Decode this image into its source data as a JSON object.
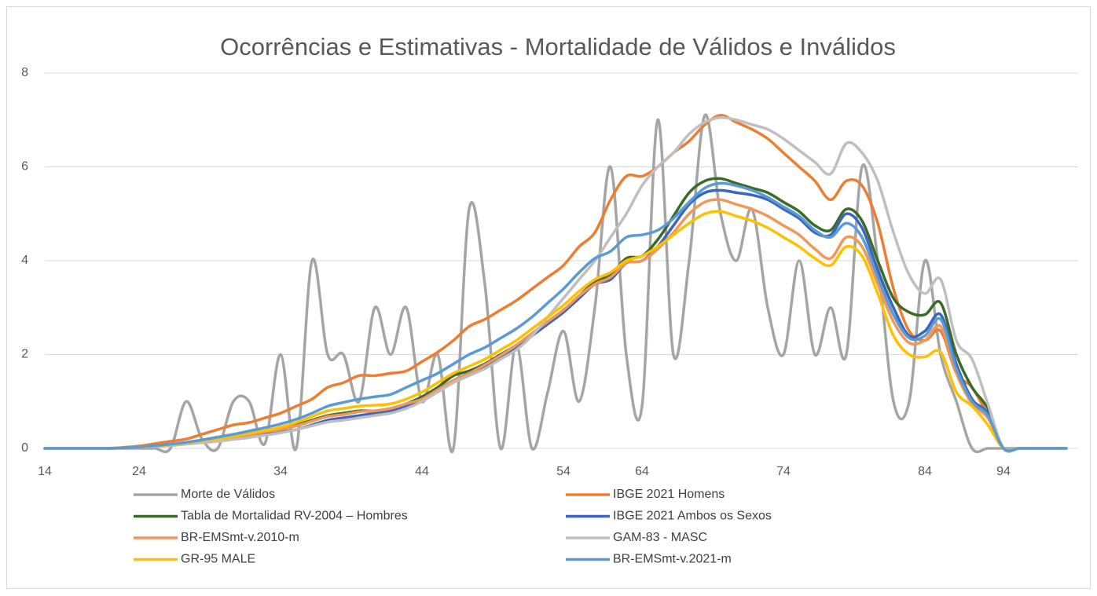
{
  "chart_data": {
    "type": "line",
    "title": "Ocorrências e Estimativas - Mortalidade de Válidos e Inválidos",
    "categories": [
      14,
      null,
      null,
      null,
      null,
      null,
      24,
      null,
      null,
      null,
      null,
      null,
      null,
      null,
      null,
      34,
      null,
      null,
      null,
      null,
      null,
      null,
      null,
      null,
      44,
      null,
      null,
      null,
      null,
      null,
      null,
      null,
      null,
      54,
      null,
      null,
      null,
      null,
      64,
      null,
      null,
      null,
      null,
      null,
      null,
      null,
      null,
      74,
      null,
      null,
      null,
      null,
      null,
      null,
      null,
      null,
      84,
      null,
      null,
      null,
      null,
      94,
      null,
      null,
      null,
      null
    ],
    "ylim": [
      0,
      8
    ],
    "yticks": [
      0,
      2,
      4,
      6,
      8
    ],
    "grid": true,
    "series": [
      {
        "name": "Morte de Válidos",
        "color": "#a5a5a5",
        "values": [
          0,
          0,
          0,
          0,
          0,
          0,
          0,
          0,
          0,
          1.0,
          0.2,
          0,
          1.0,
          1.0,
          0.1,
          2.0,
          0,
          4.0,
          2.0,
          2.0,
          1.0,
          3.0,
          2.0,
          3.0,
          1.0,
          2.0,
          0,
          5.1,
          3.5,
          0,
          2.2,
          0,
          1.2,
          2.5,
          1.0,
          3.0,
          6.0,
          2.0,
          0.9,
          7.0,
          2.0,
          4.0,
          7.1,
          5.0,
          4.0,
          5.1,
          3.0,
          2.0,
          4.0,
          2.0,
          3.0,
          2.0,
          6.0,
          4.0,
          1.0,
          1.0,
          4.0,
          2.0,
          1.0,
          0,
          0,
          0,
          0,
          0,
          0,
          0
        ]
      },
      {
        "name": "IBGE 2021  Homens",
        "color": "#ed7d31",
        "values": [
          0,
          0,
          0,
          0,
          0,
          0.02,
          0.05,
          0.1,
          0.15,
          0.2,
          0.3,
          0.4,
          0.5,
          0.55,
          0.65,
          0.75,
          0.9,
          1.05,
          1.3,
          1.4,
          1.55,
          1.55,
          1.6,
          1.65,
          1.85,
          2.05,
          2.3,
          2.6,
          2.75,
          2.95,
          3.15,
          3.4,
          3.65,
          3.9,
          4.3,
          4.6,
          5.3,
          5.8,
          5.8,
          6.0,
          6.3,
          6.55,
          6.9,
          7.1,
          6.95,
          6.8,
          6.6,
          6.3,
          6.0,
          5.7,
          5.3,
          5.7,
          5.6,
          4.8,
          3.4,
          2.5,
          2.3,
          2.5,
          1.6,
          1.3,
          0.7,
          0,
          0,
          0,
          0,
          0
        ]
      },
      {
        "name": "Tabla de Mortalidad RV-2004 – Hombres",
        "color": "#3b6b26",
        "values": [
          0,
          0,
          0,
          0,
          0,
          0.01,
          0.03,
          0.05,
          0.08,
          0.12,
          0.16,
          0.2,
          0.25,
          0.3,
          0.35,
          0.42,
          0.5,
          0.6,
          0.7,
          0.75,
          0.8,
          0.8,
          0.85,
          0.95,
          1.1,
          1.3,
          1.55,
          1.65,
          1.8,
          2.0,
          2.2,
          2.45,
          2.7,
          2.95,
          3.25,
          3.55,
          3.7,
          4.05,
          4.1,
          4.45,
          4.95,
          5.45,
          5.7,
          5.75,
          5.65,
          5.55,
          5.45,
          5.25,
          5.05,
          4.75,
          4.65,
          5.1,
          4.85,
          4.0,
          3.2,
          2.9,
          2.85,
          3.1,
          2.0,
          1.3,
          0.85,
          0,
          0,
          0,
          0,
          0
        ]
      },
      {
        "name": "IBGE 2021  Ambos os Sexos",
        "color": "#3a66bd",
        "values": [
          0,
          0,
          0,
          0,
          0,
          0.01,
          0.02,
          0.04,
          0.06,
          0.1,
          0.13,
          0.16,
          0.2,
          0.25,
          0.3,
          0.35,
          0.4,
          0.5,
          0.6,
          0.65,
          0.7,
          0.75,
          0.8,
          0.9,
          1.05,
          1.25,
          1.45,
          1.6,
          1.75,
          1.95,
          2.15,
          2.4,
          2.65,
          2.9,
          3.2,
          3.5,
          3.6,
          3.95,
          4.0,
          4.3,
          4.75,
          5.2,
          5.45,
          5.5,
          5.45,
          5.4,
          5.3,
          5.1,
          4.9,
          4.6,
          4.55,
          5.0,
          4.7,
          3.8,
          3.0,
          2.4,
          2.5,
          2.85,
          1.8,
          1.05,
          0.75,
          0,
          0,
          0,
          0,
          0
        ]
      },
      {
        "name": "BR-EMSmt-v.2010-m",
        "color": "#f1975a",
        "values": [
          0,
          0,
          0,
          0,
          0,
          0.01,
          0.03,
          0.05,
          0.07,
          0.11,
          0.15,
          0.19,
          0.24,
          0.29,
          0.35,
          0.4,
          0.48,
          0.58,
          0.68,
          0.72,
          0.78,
          0.8,
          0.85,
          0.95,
          1.05,
          1.25,
          1.45,
          1.6,
          1.78,
          1.98,
          2.2,
          2.45,
          2.7,
          2.95,
          3.25,
          3.5,
          3.65,
          3.95,
          4.0,
          4.25,
          4.6,
          5.0,
          5.25,
          5.3,
          5.2,
          5.1,
          4.95,
          4.75,
          4.55,
          4.25,
          4.05,
          4.5,
          4.3,
          3.5,
          2.7,
          2.25,
          2.3,
          2.6,
          1.6,
          0.95,
          0.65,
          0,
          0,
          0,
          0,
          0
        ]
      },
      {
        "name": "GAM-83 - MASC",
        "color": "#bfbfbf",
        "values": [
          0,
          0,
          0,
          0,
          0,
          0.01,
          0.02,
          0.04,
          0.06,
          0.09,
          0.12,
          0.15,
          0.19,
          0.23,
          0.28,
          0.33,
          0.4,
          0.48,
          0.56,
          0.6,
          0.65,
          0.7,
          0.75,
          0.85,
          1.0,
          1.2,
          1.4,
          1.55,
          1.7,
          1.9,
          2.1,
          2.4,
          2.8,
          3.2,
          3.6,
          4.0,
          4.5,
          5.0,
          5.6,
          6.0,
          6.3,
          6.7,
          6.95,
          7.05,
          7.0,
          6.9,
          6.8,
          6.6,
          6.35,
          6.1,
          5.85,
          6.5,
          6.3,
          5.7,
          4.6,
          3.7,
          3.3,
          3.6,
          2.3,
          1.9,
          0.95,
          0,
          0,
          0,
          0,
          0
        ]
      },
      {
        "name": "GR-95 MALE",
        "color": "#ffc000",
        "values": [
          0,
          0,
          0,
          0,
          0,
          0.01,
          0.03,
          0.05,
          0.08,
          0.12,
          0.16,
          0.2,
          0.26,
          0.32,
          0.38,
          0.45,
          0.55,
          0.68,
          0.8,
          0.85,
          0.9,
          0.92,
          0.95,
          1.05,
          1.2,
          1.4,
          1.6,
          1.75,
          1.9,
          2.1,
          2.3,
          2.55,
          2.8,
          3.05,
          3.35,
          3.6,
          3.75,
          4.0,
          4.1,
          4.3,
          4.55,
          4.8,
          5.0,
          5.05,
          4.95,
          4.85,
          4.7,
          4.5,
          4.3,
          4.05,
          3.9,
          4.3,
          4.1,
          3.3,
          2.4,
          2.0,
          1.95,
          2.05,
          1.2,
          0.9,
          0.5,
          0,
          0,
          0,
          0,
          0
        ]
      },
      {
        "name": "BR-EMSmt-v.2021-m",
        "color": "#5b9bd5",
        "values": [
          0,
          0,
          0,
          0,
          0,
          0.01,
          0.03,
          0.06,
          0.09,
          0.13,
          0.18,
          0.24,
          0.3,
          0.37,
          0.44,
          0.52,
          0.62,
          0.75,
          0.9,
          0.98,
          1.05,
          1.1,
          1.15,
          1.3,
          1.45,
          1.6,
          1.8,
          2.0,
          2.15,
          2.35,
          2.55,
          2.8,
          3.1,
          3.4,
          3.75,
          4.05,
          4.2,
          4.5,
          4.55,
          4.65,
          4.9,
          5.25,
          5.55,
          5.65,
          5.6,
          5.5,
          5.35,
          5.15,
          4.95,
          4.65,
          4.5,
          4.8,
          4.5,
          3.65,
          2.85,
          2.35,
          2.4,
          2.75,
          1.7,
          1.0,
          0.7,
          0,
          0,
          0,
          0,
          0
        ]
      }
    ]
  }
}
